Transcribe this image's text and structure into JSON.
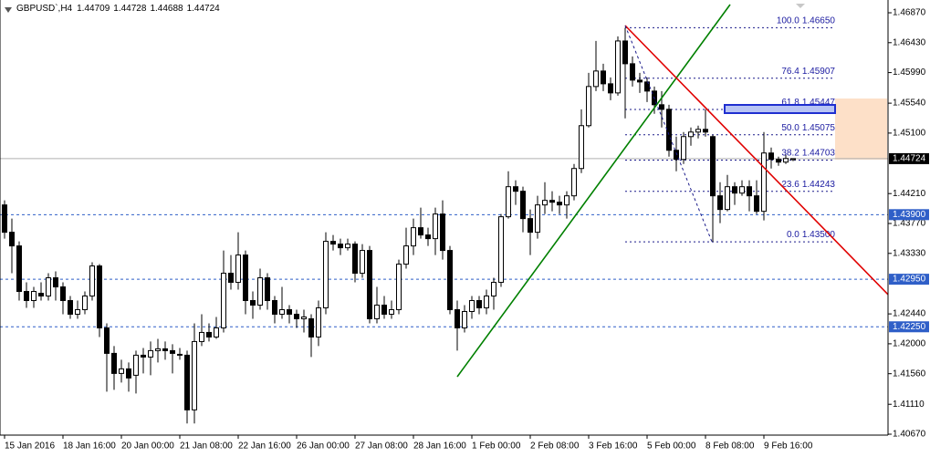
{
  "chart_data": {
    "type": "candlestick",
    "title": "GBPUSD`,H4",
    "ohlc": [
      1.44709,
      1.44728,
      1.44688,
      1.44724
    ],
    "categories": [
      "15 Jan 2016",
      null,
      null,
      null,
      null,
      null,
      null,
      null,
      "18 Jan 16:00",
      null,
      null,
      null,
      null,
      null,
      null,
      null,
      "20 Jan 00:00",
      null,
      null,
      null,
      null,
      null,
      null,
      null,
      "21 Jan 08:00",
      null,
      null,
      null,
      null,
      null,
      null,
      null,
      "22 Jan 16:00",
      null,
      null,
      null,
      null,
      null,
      null,
      null,
      "26 Jan 00:00",
      null,
      null,
      null,
      null,
      null,
      null,
      null,
      "27 Jan 08:00",
      null,
      null,
      null,
      null,
      null,
      null,
      null,
      "28 Jan 16:00",
      null,
      null,
      null,
      null,
      null,
      null,
      null,
      "1 Feb 00:00",
      null,
      null,
      null,
      null,
      null,
      null,
      null,
      "2 Feb 08:00",
      null,
      null,
      null,
      null,
      null,
      null,
      null,
      "3 Feb 16:00",
      null,
      null,
      null,
      null,
      null,
      null,
      null,
      "5 Feb 00:00",
      null,
      null,
      null,
      null,
      null,
      null,
      null,
      "8 Feb 08:00",
      null,
      null,
      null,
      null,
      null,
      null,
      null,
      "9 Feb 16:00",
      null,
      null,
      null,
      null
    ],
    "open": [
      1.44043,
      1.43641,
      1.4344,
      1.4277,
      1.42636,
      1.42743,
      1.42703,
      1.42971,
      1.42837,
      1.42636,
      1.42435,
      1.42502,
      1.42703,
      1.43145,
      1.42234,
      1.41859,
      1.41564,
      1.41631,
      1.41537,
      1.41832,
      1.41805,
      1.41899,
      1.41926,
      1.41899,
      1.41832,
      1.41832,
      1.41028,
      1.42033,
      1.42167,
      1.421,
      1.42234,
      1.43038,
      1.42904,
      1.43306,
      1.42636,
      1.42569,
      1.42971,
      1.42636,
      1.42435,
      1.42502,
      1.42435,
      1.42368,
      1.42368,
      1.421,
      1.42529,
      1.43507,
      1.43467,
      1.43413,
      1.43467,
      1.43038,
      1.43373,
      1.42368,
      1.42569,
      1.42435,
      1.42502,
      1.43172,
      1.4344,
      1.43708,
      1.43601,
      1.43547,
      1.43909,
      1.43373,
      1.42502,
      1.42234,
      1.42475,
      1.42636,
      1.42529,
      1.42703,
      1.42904,
      1.43869,
      1.44311,
      1.44244,
      1.43842,
      1.43641,
      1.44043,
      1.4411,
      1.44083,
      1.44043,
      1.44177,
      1.44579,
      1.45209,
      1.45785,
      1.46013,
      1.45825,
      1.45691,
      1.46455,
      1.4612,
      1.45879,
      1.45852,
      1.45718,
      1.45517,
      1.4545,
      1.44847,
      1.44713,
      1.45048,
      1.45115,
      1.45155,
      1.45048,
      1.44177,
      1.43976,
      1.44311,
      1.44217,
      1.44311,
      1.44177,
      1.43949,
      1.44807,
      1.44713,
      1.44673,
      1.44709
    ],
    "high": [
      1.4411,
      1.43842,
      1.43507,
      1.42904,
      1.42837,
      1.42904,
      1.43038,
      1.43065,
      1.42904,
      1.42703,
      1.42636,
      1.4277,
      1.43199,
      1.43172,
      1.42301,
      1.41966,
      1.41765,
      1.41725,
      1.41899,
      1.41939,
      1.42033,
      1.42073,
      1.42033,
      1.41993,
      1.41939,
      1.41899,
      1.42301,
      1.42435,
      1.42301,
      1.42395,
      1.43373,
      1.43306,
      1.43641,
      1.43373,
      1.4277,
      1.43105,
      1.43038,
      1.42703,
      1.42837,
      1.42569,
      1.42502,
      1.42502,
      1.42435,
      1.42636,
      1.43641,
      1.43601,
      1.43547,
      1.43547,
      1.43507,
      1.43467,
      1.4344,
      1.42837,
      1.42703,
      1.42636,
      1.43239,
      1.43708,
      1.43842,
      1.44003,
      1.43708,
      1.44003,
      1.4411,
      1.4344,
      1.42636,
      1.42569,
      1.42703,
      1.42703,
      1.42797,
      1.42971,
      1.43909,
      1.44539,
      1.44405,
      1.44311,
      1.43976,
      1.44177,
      1.44378,
      1.44244,
      1.44177,
      1.44244,
      1.44646,
      1.4545,
      1.45986,
      1.46455,
      1.4612,
      1.45919,
      1.46522,
      1.4665,
      1.46227,
      1.45986,
      1.45919,
      1.45785,
      1.45718,
      1.45517,
      1.45048,
      1.45115,
      1.45182,
      1.45209,
      1.4545,
      1.45075,
      1.44378,
      1.44485,
      1.44378,
      1.44405,
      1.44405,
      1.44405,
      1.45115,
      1.44887,
      1.44753,
      1.4478,
      1.44728
    ],
    "low": [
      1.43547,
      1.43038,
      1.42636,
      1.42529,
      1.42529,
      1.42636,
      1.42636,
      1.42636,
      1.42435,
      1.42368,
      1.42368,
      1.42435,
      1.42636,
      1.421,
      1.41296,
      1.41323,
      1.4143,
      1.41296,
      1.41269,
      1.41564,
      1.41537,
      1.41725,
      1.41765,
      1.41564,
      1.41765,
      1.40827,
      1.40827,
      1.41966,
      1.42033,
      1.42073,
      1.42167,
      1.42797,
      1.42797,
      1.42435,
      1.42368,
      1.42502,
      1.42502,
      1.42301,
      1.42368,
      1.42301,
      1.42234,
      1.42167,
      1.41805,
      1.41966,
      1.42435,
      1.43373,
      1.43306,
      1.43373,
      1.42904,
      1.42971,
      1.42301,
      1.42301,
      1.42368,
      1.42368,
      1.42435,
      1.43105,
      1.43306,
      1.43547,
      1.4344,
      1.43306,
      1.43239,
      1.42435,
      1.41899,
      1.42167,
      1.42368,
      1.42435,
      1.42435,
      1.42502,
      1.42837,
      1.43842,
      1.44043,
      1.43641,
      1.43306,
      1.43547,
      1.43909,
      1.43949,
      1.43909,
      1.43842,
      1.4411,
      1.44512,
      1.45182,
      1.45718,
      1.45718,
      1.45584,
      1.45651,
      1.45316,
      1.45785,
      1.45691,
      1.45557,
      1.45383,
      1.45182,
      1.44753,
      1.44539,
      1.44646,
      1.44914,
      1.45021,
      1.45048,
      1.435,
      1.43775,
      1.43949,
      1.44043,
      1.44177,
      1.43949,
      1.43909,
      1.43815,
      1.44579,
      1.44619,
      1.44646,
      1.44688
    ],
    "close": [
      1.43641,
      1.4344,
      1.4277,
      1.42636,
      1.4277,
      1.42703,
      1.42971,
      1.42837,
      1.42636,
      1.42435,
      1.42502,
      1.42703,
      1.43145,
      1.42234,
      1.41859,
      1.41564,
      1.41631,
      1.41497,
      1.41832,
      1.41805,
      1.41899,
      1.41926,
      1.41899,
      1.41859,
      1.41845,
      1.41028,
      1.42033,
      1.42167,
      1.421,
      1.42234,
      1.43038,
      1.42904,
      1.43306,
      1.42636,
      1.42569,
      1.42971,
      1.42636,
      1.42435,
      1.42502,
      1.42435,
      1.42368,
      1.42395,
      1.421,
      1.42529,
      1.43507,
      1.43467,
      1.43413,
      1.43467,
      1.43038,
      1.43373,
      1.42368,
      1.42569,
      1.42435,
      1.42502,
      1.43172,
      1.4344,
      1.43708,
      1.43601,
      1.43547,
      1.43909,
      1.43373,
      1.42502,
      1.42234,
      1.42475,
      1.42636,
      1.42529,
      1.42703,
      1.42904,
      1.43869,
      1.44311,
      1.44244,
      1.43842,
      1.43641,
      1.44043,
      1.4411,
      1.44083,
      1.44043,
      1.44177,
      1.44579,
      1.45209,
      1.45785,
      1.46013,
      1.45825,
      1.45691,
      1.46455,
      1.4612,
      1.45879,
      1.45852,
      1.45718,
      1.45517,
      1.4545,
      1.44847,
      1.44713,
      1.45048,
      1.45115,
      1.45155,
      1.45115,
      1.44177,
      1.43976,
      1.44311,
      1.44217,
      1.44311,
      1.44177,
      1.43949,
      1.44807,
      1.44713,
      1.44673,
      1.44726,
      1.44724
    ],
    "ylim": [
      1.4067,
      1.4687
    ],
    "yticks": [
      {
        "value": 1.4687,
        "label": "1.46870"
      },
      {
        "value": 1.4643,
        "label": "1.46430"
      },
      {
        "value": 1.4599,
        "label": "1.45990"
      },
      {
        "value": 1.4554,
        "label": "1.45540"
      },
      {
        "value": 1.451,
        "label": "1.45100"
      },
      {
        "value": 1.4421,
        "label": "1.44210"
      },
      {
        "value": 1.4377,
        "label": "1.43770"
      },
      {
        "value": 1.4333,
        "label": "1.43330"
      },
      {
        "value": 1.4244,
        "label": "1.42440"
      },
      {
        "value": 1.42,
        "label": "1.42000"
      },
      {
        "value": 1.4156,
        "label": "1.41560"
      },
      {
        "value": 1.4111,
        "label": "1.41110"
      },
      {
        "value": 1.4067,
        "label": "1.40670"
      }
    ],
    "last": 1.44724,
    "levels": [
      {
        "value": 1.439,
        "label": "1.43900"
      },
      {
        "value": 1.4295,
        "label": "1.42950"
      },
      {
        "value": 1.4225,
        "label": "1.42250"
      }
    ],
    "fibonacci": [
      {
        "ratio": {
          "value": 100,
          "label": "100.0"
        },
        "price": {
          "value": 1.4665,
          "label": "1.46650"
        }
      },
      {
        "ratio": 76.4,
        "price": 1.45907
      },
      {
        "ratio": 61.8,
        "price": 1.45447
      },
      {
        "ratio": {
          "value": 50,
          "label": "50.0"
        },
        "price": 1.45075
      },
      {
        "ratio": 38.2,
        "price": 1.44703
      },
      {
        "ratio": 23.6,
        "price": 1.44243
      },
      {
        "ratio": {
          "value": 0,
          "label": "0.0"
        },
        "price": {
          "value": 1.435,
          "label": "1.43500"
        }
      }
    ],
    "bull_color": "#ffffff",
    "bear_color": "#000000",
    "level_color": "#2f5fc8",
    "fib_color": "#1a1a8a"
  }
}
